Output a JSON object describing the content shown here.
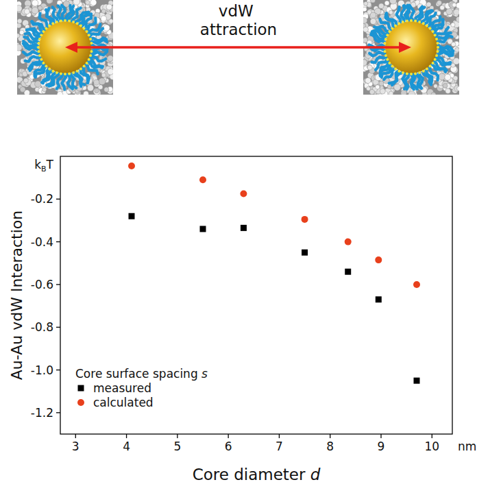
{
  "chart_data": {
    "type": "scatter",
    "annotations": [
      "vdW attraction",
      "kBT",
      "nm"
    ],
    "x_label": "Core diameter d",
    "y_label": "Au-Au vdW Interaction",
    "legend_title": "Core surface spacing s",
    "legend": "lower left",
    "x": [
      4.1,
      5.5,
      6.3,
      7.5,
      8.35,
      8.95,
      9.7
    ],
    "series": [
      {
        "name": "measured",
        "color": "#000000",
        "marker": "square",
        "values": [
          -0.28,
          -0.34,
          -0.335,
          -0.45,
          -0.54,
          -0.67,
          -1.05
        ]
      },
      {
        "name": "calculated",
        "color": "#e8401c",
        "marker": "circle",
        "values": [
          -0.045,
          -0.11,
          -0.175,
          -0.295,
          -0.4,
          -0.485,
          -0.6
        ]
      }
    ],
    "xlim": [
      2.7,
      10.4
    ],
    "xticks": [
      3,
      4,
      5,
      6,
      7,
      8,
      9,
      10
    ],
    "ylim": [
      -1.3,
      0
    ],
    "yticks": [
      -1.2,
      {
        "value": -1,
        "label": "-1.0"
      },
      -0.8,
      -0.6,
      -0.4,
      -0.2
    ],
    "grid": false
  }
}
